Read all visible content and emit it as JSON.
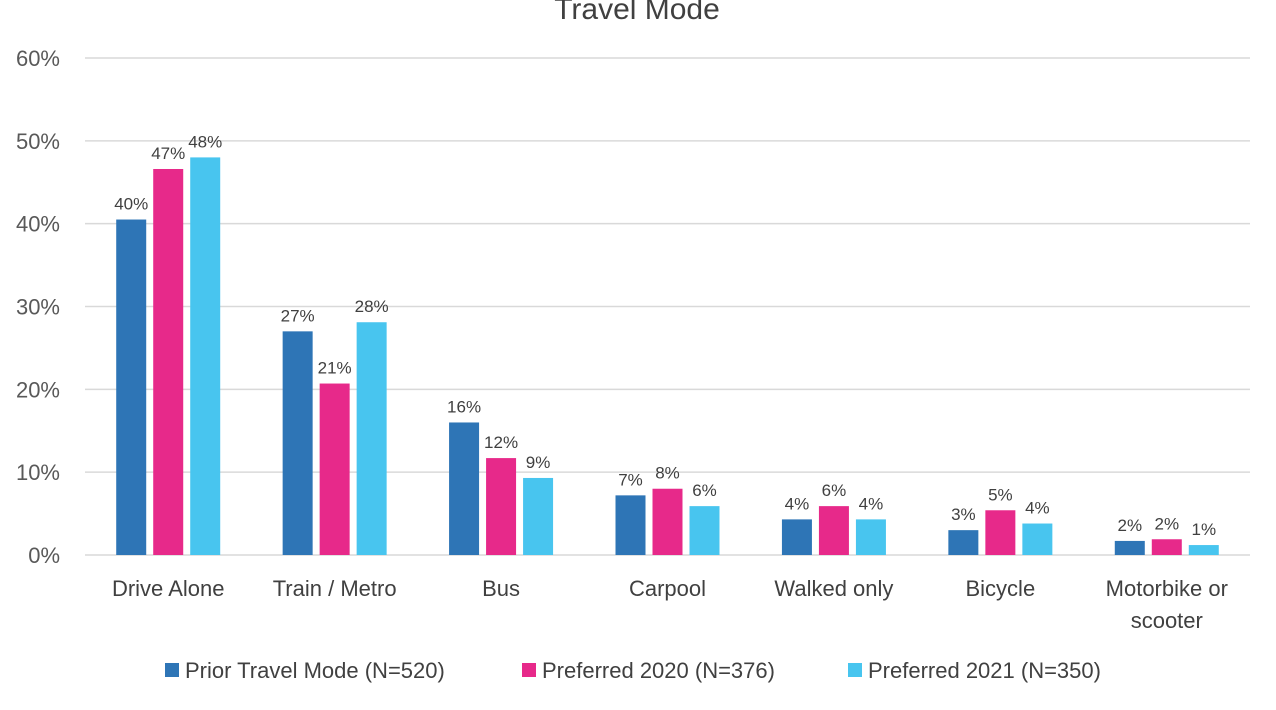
{
  "chart_data": {
    "type": "bar",
    "title": "Travel Mode",
    "xlabel": "",
    "ylabel": "",
    "ylim": [
      0,
      60
    ],
    "yticks": [
      "0%",
      "10%",
      "20%",
      "30%",
      "40%",
      "50%",
      "60%"
    ],
    "grid": true,
    "legend_position": "bottom",
    "categories": [
      "Drive Alone",
      "Train / Metro",
      "Bus",
      "Carpool",
      "Walked only",
      "Bicycle",
      "Motorbike or scooter"
    ],
    "series": [
      {
        "name": "Prior Travel Mode (N=520)",
        "color": "#2e75b6",
        "values": [
          40.5,
          27,
          16,
          7.2,
          4.3,
          3,
          1.7
        ],
        "labels": [
          "40%",
          "27%",
          "16%",
          "7%",
          "4%",
          "3%",
          "2%"
        ]
      },
      {
        "name": "Preferred 2020 (N=376)",
        "color": "#e7298a",
        "values": [
          46.6,
          20.7,
          11.7,
          8,
          5.9,
          5.4,
          1.9
        ],
        "labels": [
          "47%",
          "21%",
          "12%",
          "8%",
          "6%",
          "5%",
          "2%"
        ]
      },
      {
        "name": "Preferred 2021 (N=350)",
        "color": "#48c5ef",
        "values": [
          48,
          28.1,
          9.3,
          5.9,
          4.3,
          3.8,
          1.2
        ],
        "labels": [
          "48%",
          "28%",
          "9%",
          "6%",
          "4%",
          "4%",
          "1%"
        ]
      }
    ]
  }
}
